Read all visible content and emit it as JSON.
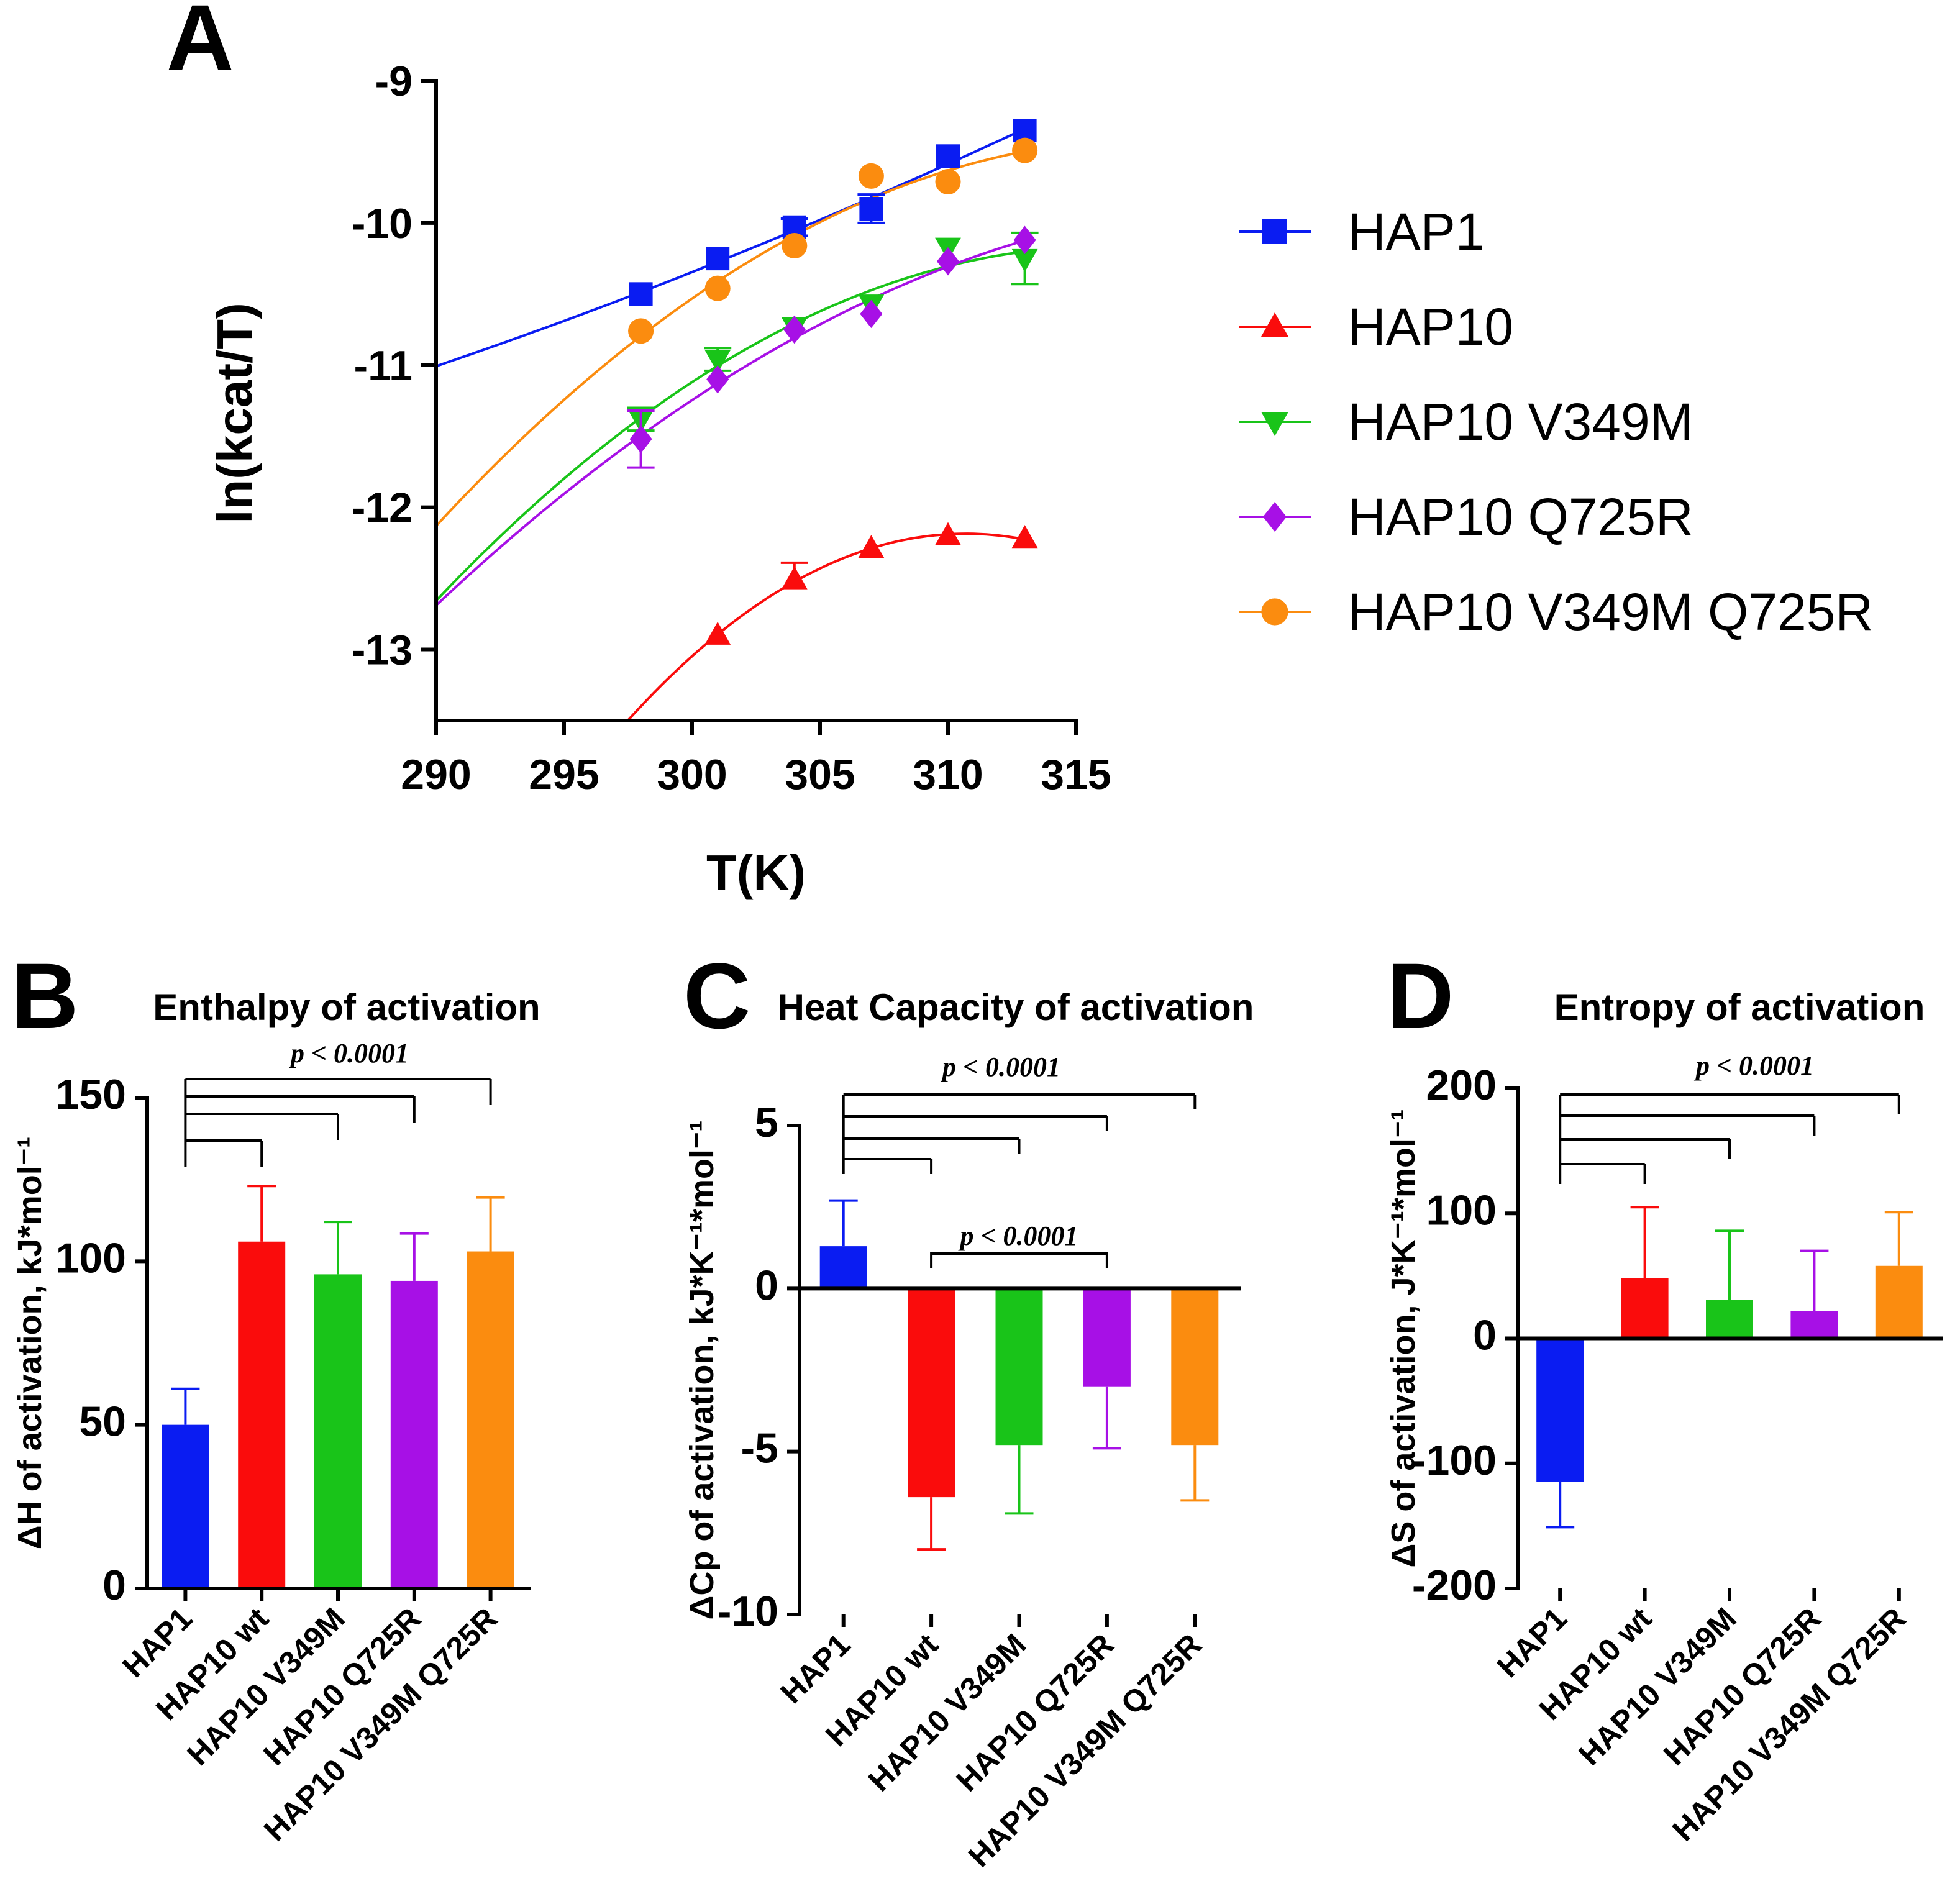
{
  "chart_data": [
    {
      "panel": "A",
      "type": "scatter",
      "title": "",
      "xlabel": "T(K)",
      "ylabel": "ln(kcat/T)",
      "xlim": [
        290,
        315
      ],
      "ylim": [
        -13.5,
        -9
      ],
      "xticks": [
        290,
        295,
        300,
        305,
        310,
        315
      ],
      "yticks": [
        -9,
        -10,
        -11,
        -12,
        -13
      ],
      "fit": "quadratic",
      "series": [
        {
          "name": "HAP1",
          "color": "#0a1cf2",
          "marker": "square",
          "x": [
            298,
            301,
            304,
            307,
            310,
            313
          ],
          "y": [
            -10.5,
            -10.25,
            -10.03,
            -9.9,
            -9.53,
            -9.35
          ],
          "err": [
            0,
            0,
            0.06,
            0.1,
            0,
            0
          ]
        },
        {
          "name": "HAP10",
          "color": "#fa0c0c",
          "marker": "triangle-up",
          "x": [
            301,
            304,
            307,
            310,
            313
          ],
          "y": [
            -12.9,
            -12.51,
            -12.29,
            -12.2,
            -12.22
          ],
          "err": [
            0,
            0.12,
            0,
            0,
            0
          ]
        },
        {
          "name": "HAP10 V349M",
          "color": "#19c419",
          "marker": "triangle-down",
          "x": [
            298,
            301,
            304,
            307,
            310,
            313
          ],
          "y": [
            -11.38,
            -10.96,
            -10.73,
            -10.57,
            -10.17,
            -10.25
          ],
          "err": [
            0.08,
            0.08,
            0,
            0,
            0,
            0.18
          ]
        },
        {
          "name": "HAP10 Q725R",
          "color": "#a710e6",
          "marker": "diamond",
          "x": [
            298,
            301,
            304,
            307,
            310,
            313
          ],
          "y": [
            -11.52,
            -11.1,
            -10.75,
            -10.64,
            -10.27,
            -10.12
          ],
          "err": [
            0.2,
            0,
            0,
            0,
            0,
            0
          ]
        },
        {
          "name": "HAP10 V349M Q725R",
          "color": "#fb8c0f",
          "marker": "circle",
          "x": [
            298,
            301,
            304,
            307,
            310,
            313
          ],
          "y": [
            -10.76,
            -10.46,
            -10.16,
            -9.67,
            -9.71,
            -9.49
          ],
          "err": [
            0,
            0,
            0,
            0,
            0,
            0
          ]
        }
      ]
    },
    {
      "panel": "B",
      "type": "bar",
      "title": "Enthalpy of activation",
      "ylabel": "ΔH of activation, kJ*mol⁻¹",
      "ylim": [
        0,
        150
      ],
      "yticks": [
        0,
        50,
        100,
        150
      ],
      "categories": [
        "HAP1",
        "HAP10 wt",
        "HAP10 V349M",
        "HAP10 Q725R",
        "HAP10 V349M Q725R"
      ],
      "values": [
        50,
        106,
        96,
        94,
        103
      ],
      "errors": [
        11,
        17,
        16,
        14.5,
        16.5
      ],
      "colors": [
        "#0a1cf2",
        "#fa0c0c",
        "#19c419",
        "#a710e6",
        "#fb8c0f"
      ],
      "significance": [
        {
          "label": "p < 0.0001",
          "from": 0,
          "to": [
            1,
            2,
            3,
            4
          ]
        }
      ]
    },
    {
      "panel": "C",
      "type": "bar",
      "title": "Heat Capacity of activation",
      "ylabel": "ΔCp of activation, kJ*K⁻¹*mol⁻¹",
      "ylim": [
        -10,
        5
      ],
      "yticks": [
        5,
        0,
        -5,
        -10
      ],
      "categories": [
        "HAP1",
        "HAP10 wt",
        "HAP10 V349M",
        "HAP10 Q725R",
        "HAP10 V349M Q725R"
      ],
      "values": [
        1.3,
        -6.4,
        -4.8,
        -3.0,
        -4.8
      ],
      "errors": [
        1.4,
        1.6,
        2.1,
        1.9,
        1.7
      ],
      "colors": [
        "#0a1cf2",
        "#fa0c0c",
        "#19c419",
        "#a710e6",
        "#fb8c0f"
      ],
      "significance": [
        {
          "label": "p < 0.0001",
          "from": 0,
          "to": [
            1,
            2,
            3,
            4
          ]
        },
        {
          "label": "p < 0.0001",
          "from": 1,
          "to": [
            3
          ]
        }
      ]
    },
    {
      "panel": "D",
      "type": "bar",
      "title": "Entropy of activation",
      "ylabel": "ΔS of activation, J*K⁻¹*mol⁻¹",
      "ylim": [
        -200,
        200
      ],
      "yticks": [
        200,
        100,
        0,
        -100,
        -200
      ],
      "categories": [
        "HAP1",
        "HAP10 wt",
        "HAP10 V349M",
        "HAP10 Q725R",
        "HAP10 V349M Q725R"
      ],
      "values": [
        -115,
        48,
        31,
        22,
        58
      ],
      "errors": [
        36,
        57,
        55,
        48,
        43
      ],
      "colors": [
        "#0a1cf2",
        "#fa0c0c",
        "#19c419",
        "#a710e6",
        "#fb8c0f"
      ],
      "significance": [
        {
          "label": "p < 0.0001",
          "from": 0,
          "to": [
            1,
            2,
            3,
            4
          ]
        }
      ]
    }
  ]
}
